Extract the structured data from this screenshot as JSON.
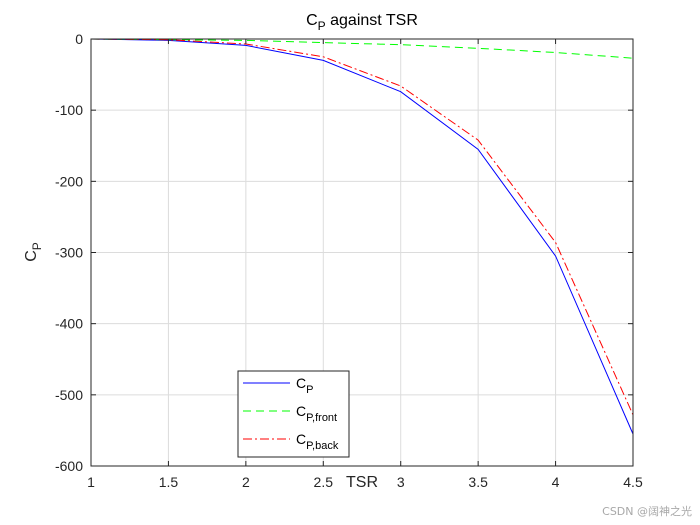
{
  "chart_data": {
    "type": "line",
    "title": {
      "base": "C",
      "sub": "P",
      "rest": " against TSR"
    },
    "xlabel": "TSR",
    "ylabel": {
      "base": "C",
      "sub": "P"
    },
    "xlim": [
      1,
      4.5
    ],
    "ylim": [
      -600,
      0
    ],
    "xticks": [
      "1",
      "1.5",
      "2",
      "2.5",
      "3",
      "3.5",
      "4",
      "4.5"
    ],
    "yticks": [
      "0",
      "-100",
      "-200",
      "-300",
      "-400",
      "-500",
      "-600"
    ],
    "grid": true,
    "legend_position": "bottom-center",
    "x": [
      1,
      1.5,
      2,
      2.5,
      3,
      3.5,
      4,
      4.5
    ],
    "series": [
      {
        "name": "C_P",
        "label_base": "C",
        "label_sub": "P",
        "color": "#0000ff",
        "dash": "none",
        "values": [
          0,
          -2,
          -9,
          -30,
          -74,
          -155,
          -305,
          -555
        ]
      },
      {
        "name": "C_P,front",
        "label_base": "C",
        "label_sub": "P,front",
        "color": "#00ff00",
        "dash": "8,5",
        "values": [
          0,
          -1,
          -2,
          -5,
          -8,
          -13,
          -19,
          -27
        ]
      },
      {
        "name": "C_P,back",
        "label_base": "C",
        "label_sub": "P,back",
        "color": "#ff0000",
        "dash": "9,3,2,3",
        "values": [
          0,
          -1,
          -7,
          -25,
          -66,
          -142,
          -286,
          -528
        ]
      }
    ]
  },
  "watermark": "CSDN @阔神之光"
}
